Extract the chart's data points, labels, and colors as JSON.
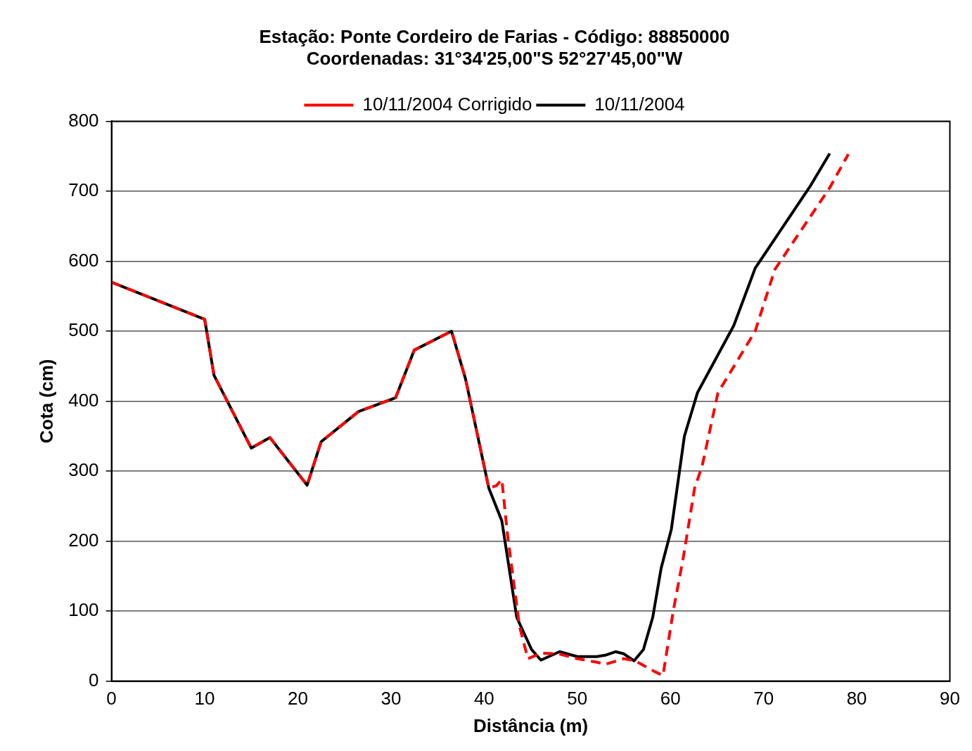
{
  "chart_data": {
    "type": "line",
    "title": [
      "Estação: Ponte Cordeiro de Farias - Código: 88850000",
      "Coordenadas: 31°34'25,00\"S 52°27'45,00\"W"
    ],
    "xlabel": "Distância (m)",
    "ylabel": "Cota (cm)",
    "xlim": [
      0,
      90
    ],
    "xticks": [
      0,
      10,
      20,
      30,
      40,
      50,
      60,
      70,
      80,
      90
    ],
    "ylim": [
      0,
      800
    ],
    "yticks": [
      0,
      100,
      200,
      300,
      400,
      500,
      600,
      700,
      800
    ],
    "grid": "y",
    "legend": "top",
    "marker": "none",
    "series": [
      {
        "name": "10/11/2004 Corrigido",
        "color": "#ff0000",
        "line_style": "dashed",
        "x": [
          0,
          10,
          11,
          15,
          17,
          21,
          22.5,
          26.5,
          30.5,
          32.5,
          36.5,
          38,
          40.5,
          41.3,
          41.9,
          42.5,
          43.8,
          44.7,
          46.1,
          48,
          50,
          52.1,
          53,
          55,
          56.2,
          57.7,
          58.4,
          59.2,
          60.3,
          61.4,
          62.6,
          63.4,
          65.1,
          69.1,
          71.2,
          77.1,
          79.1
        ],
        "values": [
          570,
          517,
          437,
          333,
          348,
          280,
          342,
          385,
          405,
          473,
          500,
          432,
          276,
          279,
          288,
          210,
          78,
          32,
          40,
          39,
          32,
          27,
          24,
          32,
          29,
          18,
          13,
          8,
          100,
          178,
          276,
          307,
          412,
          500,
          588,
          705,
          753
        ]
      },
      {
        "name": "10/11/2004",
        "color": "#000000",
        "line_style": "solid",
        "x": [
          0,
          10,
          11,
          15,
          17,
          21,
          22.5,
          26.5,
          30.5,
          32.5,
          36.5,
          38,
          40.5,
          41.9,
          43.5,
          45.1,
          46.1,
          48.1,
          50,
          52.1,
          53,
          54.1,
          55,
          56.1,
          57.1,
          58.1,
          59,
          60.1,
          61.5,
          62.9,
          66.8,
          69.1,
          75,
          77.1
        ],
        "values": [
          570,
          517,
          437,
          333,
          348,
          280,
          342,
          385,
          405,
          473,
          500,
          432,
          276,
          229,
          91,
          45,
          30,
          42,
          35,
          35,
          37,
          42,
          39,
          29,
          45,
          91,
          161,
          217,
          350,
          412,
          508,
          590,
          707,
          754
        ]
      }
    ]
  }
}
